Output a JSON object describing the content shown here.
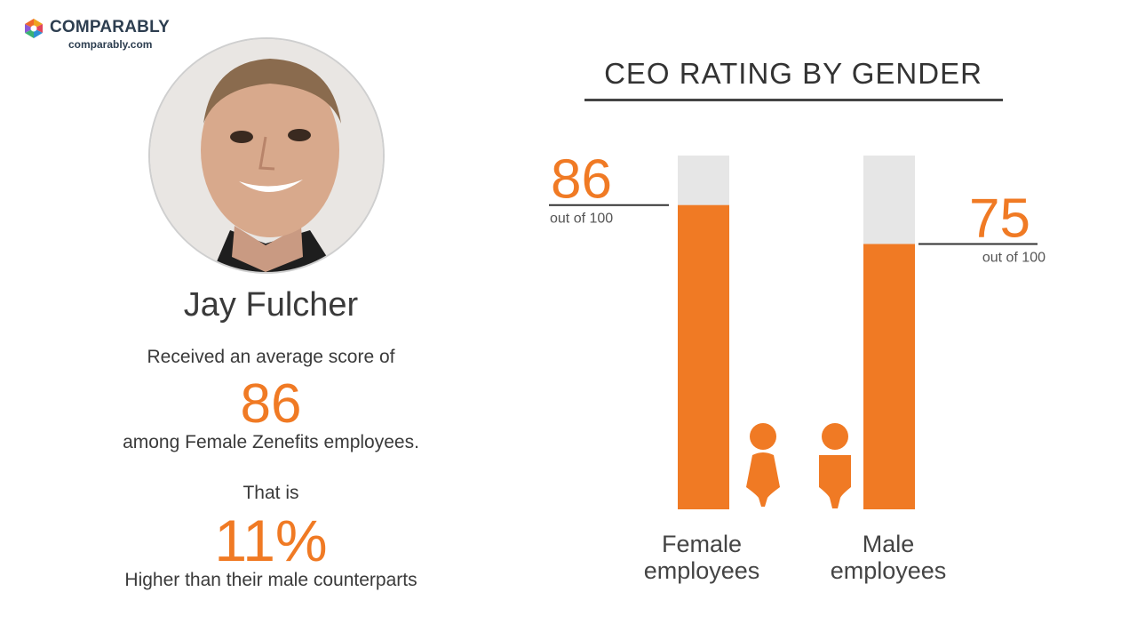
{
  "brand": {
    "name": "COMPARABLY",
    "url": "comparably.com"
  },
  "ceo": {
    "name": "Jay Fulcher",
    "line1": "Received an average score of",
    "score": "86",
    "line2": "among Female Zenefits employees.",
    "line3": "That is",
    "difference": "11%",
    "line4": "Higher than their male counterparts"
  },
  "colors": {
    "accent": "#f07a24",
    "track": "#e6e6e6",
    "text": "#333333"
  },
  "chart_data": {
    "type": "bar",
    "title": "CEO RATING BY GENDER",
    "categories": [
      "Female employees",
      "Male employees"
    ],
    "category_lines": [
      [
        "Female",
        "employees"
      ],
      [
        "Male",
        "employees"
      ]
    ],
    "icons": [
      "female-person-icon",
      "male-person-icon"
    ],
    "values": [
      86,
      75
    ],
    "value_labels": [
      "86",
      "75"
    ],
    "value_caption": "out of 100",
    "ylim": [
      0,
      100
    ],
    "grid": false,
    "legend": "none"
  }
}
